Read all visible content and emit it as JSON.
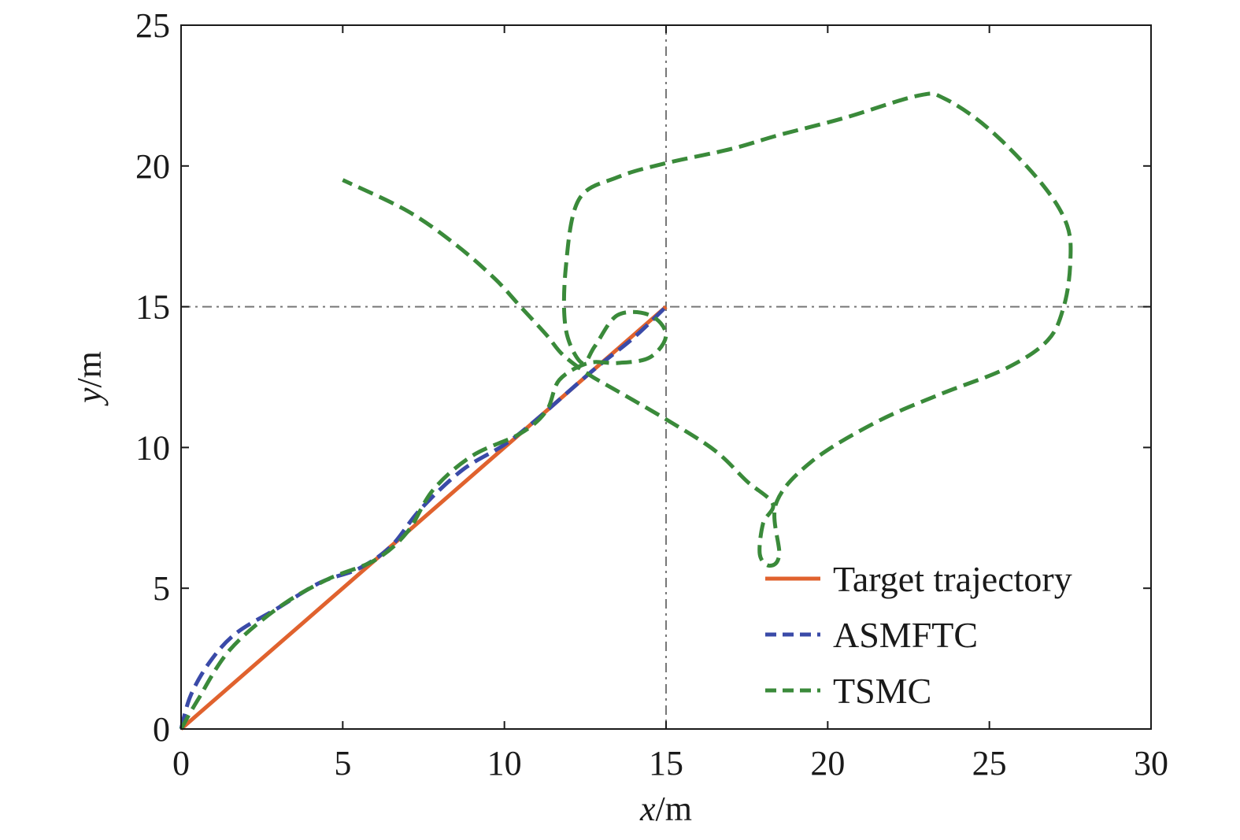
{
  "chart_data": {
    "type": "line",
    "xlabel": {
      "var": "x",
      "unit": "/m"
    },
    "ylabel": {
      "var": "y",
      "unit": "/m"
    },
    "xlim": [
      0,
      30
    ],
    "ylim": [
      0,
      25
    ],
    "xticks": [
      0,
      5,
      10,
      15,
      20,
      25,
      30
    ],
    "yticks": [
      0,
      5,
      10,
      15,
      20,
      25
    ],
    "grid": false,
    "reference_lines": {
      "x": 15,
      "y": 15,
      "color": "#777777",
      "style": "dash-dot"
    },
    "legend": {
      "position": "bottom-right"
    },
    "series": [
      {
        "name": "Target trajectory",
        "color": "#e0622e",
        "style": "solid",
        "points": [
          [
            0,
            0
          ],
          [
            5,
            5
          ],
          [
            10,
            10
          ],
          [
            12.7,
            12.7
          ],
          [
            15,
            15
          ]
        ]
      },
      {
        "name": "ASMFTC",
        "color": "#3a4aa8",
        "style": "dashed",
        "points": [
          [
            0,
            0
          ],
          [
            0.3,
            1.2
          ],
          [
            0.9,
            2.4
          ],
          [
            1.7,
            3.4
          ],
          [
            3,
            4.3
          ],
          [
            4.3,
            5.2
          ],
          [
            5.5,
            5.7
          ],
          [
            6.5,
            6.5
          ],
          [
            7.4,
            7.8
          ],
          [
            8.7,
            9.2
          ],
          [
            10,
            10.1
          ],
          [
            11,
            11
          ],
          [
            12.7,
            12.7
          ],
          [
            14,
            13.9
          ],
          [
            15,
            15
          ]
        ]
      },
      {
        "name": "TSMC",
        "color": "#3a8a3a",
        "style": "dashed",
        "points": [
          [
            0,
            0
          ],
          [
            0.5,
            1
          ],
          [
            1.5,
            2.8
          ],
          [
            3,
            4.3
          ],
          [
            4.5,
            5.3
          ],
          [
            6,
            6
          ],
          [
            7,
            7
          ],
          [
            7.8,
            8.5
          ],
          [
            9,
            9.7
          ],
          [
            10.5,
            10.5
          ],
          [
            11.3,
            11.3
          ],
          [
            11.7,
            12.4
          ],
          [
            12.6,
            13
          ],
          [
            13.5,
            13
          ],
          [
            14.5,
            13.2
          ],
          [
            15,
            14
          ],
          [
            14.5,
            14.7
          ],
          [
            13.5,
            14.7
          ],
          [
            12.8,
            13.6
          ],
          [
            12.4,
            13
          ],
          [
            11.9,
            14.2
          ],
          [
            11.9,
            16.4
          ],
          [
            12.3,
            18.8
          ],
          [
            13.5,
            19.6
          ],
          [
            15,
            20.1
          ],
          [
            17,
            20.6
          ],
          [
            18.5,
            21.1
          ],
          [
            20.5,
            21.7
          ],
          [
            22.8,
            22.5
          ],
          [
            23.6,
            22.4
          ],
          [
            25,
            21.3
          ],
          [
            26.6,
            19.4
          ],
          [
            27.4,
            17.9
          ],
          [
            27.5,
            16.5
          ],
          [
            27.3,
            15
          ],
          [
            26.8,
            13.8
          ],
          [
            25.5,
            12.8
          ],
          [
            23.5,
            11.9
          ],
          [
            21.5,
            10.9
          ],
          [
            19.5,
            9.5
          ],
          [
            18.4,
            8
          ],
          [
            18.5,
            6.2
          ],
          [
            18.2,
            5.8
          ],
          [
            17.9,
            6.2
          ],
          [
            18,
            7.3
          ],
          [
            18.3,
            8
          ],
          [
            17.5,
            8.8
          ],
          [
            16.5,
            9.9
          ],
          [
            15,
            11
          ],
          [
            13.5,
            12
          ],
          [
            12.6,
            12.6
          ],
          [
            11.8,
            13.3
          ],
          [
            11.3,
            14
          ],
          [
            10.5,
            15
          ],
          [
            9.7,
            16
          ],
          [
            8.5,
            17.2
          ],
          [
            7,
            18.4
          ],
          [
            5,
            19.5
          ]
        ]
      }
    ]
  }
}
